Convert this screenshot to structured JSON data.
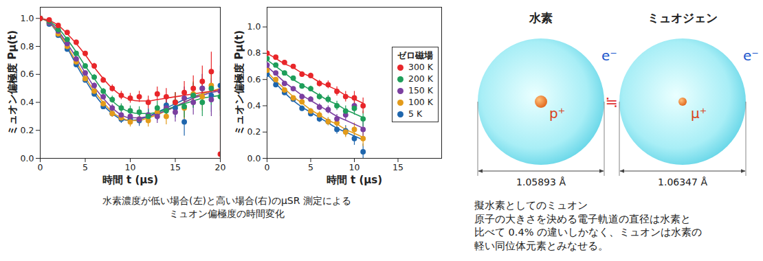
{
  "chart_data": [
    {
      "type": "scatter",
      "x_label": "時間 t (μs)",
      "y_label": "ミュオン偏極度 Pμ(t)",
      "xlim": [
        0,
        20
      ],
      "xticks": [
        0,
        5,
        10,
        15,
        20
      ],
      "ylim": [
        0,
        1.08
      ],
      "yticks": [
        {
          "value": 0,
          "label": "0.0"
        },
        0.2,
        0.4,
        0.6,
        0.8,
        {
          "value": 1,
          "label": "1.0"
        }
      ],
      "grid": false,
      "x": [
        0,
        1,
        2,
        3,
        4,
        5,
        6,
        7,
        8,
        9,
        10,
        11,
        12,
        13,
        14,
        15,
        16,
        17,
        18,
        19,
        20
      ],
      "series": [
        {
          "name": "300 K",
          "color": "#e8262a",
          "marker": "circle",
          "line_style": "solid",
          "values": [
            1.0,
            0.99,
            0.95,
            0.9,
            0.83,
            0.75,
            0.66,
            0.56,
            0.5,
            0.45,
            0.43,
            0.44,
            0.4,
            0.46,
            0.44,
            0.4,
            0.47,
            0.5,
            0.55,
            0.62,
            0.03
          ],
          "errors": [
            0.01,
            0.01,
            0.01,
            0.01,
            0.015,
            0.015,
            0.02,
            0.02,
            0.025,
            0.03,
            0.035,
            0.04,
            0.045,
            0.05,
            0.06,
            0.07,
            0.08,
            0.09,
            0.11,
            0.14,
            0.35
          ],
          "fit": [
            1.0,
            0.985,
            0.95,
            0.89,
            0.82,
            0.74,
            0.65,
            0.57,
            0.5,
            0.45,
            0.42,
            0.41,
            0.41,
            0.42,
            0.43,
            0.44,
            0.45,
            0.46,
            0.47,
            0.48,
            0.49
          ]
        },
        {
          "name": "200 K",
          "color": "#1f9e5a",
          "marker": "circle",
          "line_style": "solid",
          "values": [
            1.0,
            0.98,
            0.92,
            0.85,
            0.75,
            0.66,
            0.58,
            0.48,
            0.42,
            0.36,
            0.34,
            0.33,
            0.3,
            0.36,
            0.34,
            0.4,
            0.37,
            0.45,
            0.4,
            0.5,
            0.44
          ],
          "errors": [
            0.01,
            0.01,
            0.01,
            0.01,
            0.015,
            0.015,
            0.02,
            0.02,
            0.025,
            0.03,
            0.035,
            0.04,
            0.045,
            0.05,
            0.06,
            0.07,
            0.08,
            0.09,
            0.1,
            0.12,
            0.14
          ],
          "fit": [
            1.0,
            0.98,
            0.93,
            0.85,
            0.76,
            0.66,
            0.57,
            0.48,
            0.41,
            0.36,
            0.33,
            0.32,
            0.32,
            0.33,
            0.35,
            0.37,
            0.39,
            0.41,
            0.43,
            0.44,
            0.45
          ]
        },
        {
          "name": "150 K",
          "color": "#7b3fa0",
          "marker": "circle",
          "line_style": "solid",
          "values": [
            1.0,
            0.97,
            0.91,
            0.82,
            0.71,
            0.61,
            0.52,
            0.44,
            0.36,
            0.31,
            0.3,
            0.28,
            0.31,
            0.3,
            0.36,
            0.33,
            0.43,
            0.4,
            0.5,
            0.42,
            0.48
          ],
          "errors": [
            0.01,
            0.01,
            0.01,
            0.01,
            0.015,
            0.015,
            0.02,
            0.02,
            0.025,
            0.03,
            0.035,
            0.04,
            0.045,
            0.05,
            0.06,
            0.07,
            0.08,
            0.09,
            0.1,
            0.12,
            0.14
          ],
          "fit": [
            1.0,
            0.975,
            0.91,
            0.82,
            0.72,
            0.61,
            0.51,
            0.43,
            0.36,
            0.31,
            0.29,
            0.29,
            0.3,
            0.32,
            0.34,
            0.37,
            0.4,
            0.43,
            0.45,
            0.47,
            0.48
          ]
        },
        {
          "name": "100 K",
          "color": "#e39b1a",
          "marker": "circle",
          "line_style": "solid",
          "values": [
            1.0,
            0.97,
            0.89,
            0.8,
            0.69,
            0.57,
            0.48,
            0.39,
            0.32,
            0.29,
            0.26,
            0.28,
            0.27,
            0.33,
            0.3,
            0.4,
            0.36,
            0.46,
            0.44,
            0.52,
            0.48
          ],
          "errors": [
            0.01,
            0.01,
            0.01,
            0.01,
            0.015,
            0.015,
            0.02,
            0.02,
            0.025,
            0.03,
            0.035,
            0.04,
            0.045,
            0.05,
            0.06,
            0.07,
            0.08,
            0.09,
            0.1,
            0.12,
            0.14
          ],
          "fit": [
            1.0,
            0.97,
            0.9,
            0.8,
            0.69,
            0.58,
            0.48,
            0.4,
            0.33,
            0.29,
            0.27,
            0.27,
            0.29,
            0.31,
            0.34,
            0.37,
            0.4,
            0.43,
            0.46,
            0.48,
            0.5
          ]
        },
        {
          "name": "5 K",
          "color": "#1f66ad",
          "marker": "circle",
          "line_style": "solid",
          "values": [
            1.0,
            0.96,
            0.88,
            0.78,
            0.67,
            0.56,
            0.46,
            0.37,
            0.32,
            0.28,
            0.28,
            0.27,
            0.31,
            0.32,
            0.38,
            0.36,
            0.26,
            0.45,
            0.5,
            0.45,
            0.52
          ],
          "errors": [
            0.01,
            0.01,
            0.01,
            0.01,
            0.015,
            0.015,
            0.02,
            0.02,
            0.025,
            0.03,
            0.035,
            0.04,
            0.045,
            0.05,
            0.06,
            0.07,
            0.1,
            0.09,
            0.1,
            0.12,
            0.14
          ],
          "fit": [
            1.0,
            0.97,
            0.89,
            0.79,
            0.67,
            0.56,
            0.46,
            0.38,
            0.32,
            0.28,
            0.27,
            0.28,
            0.3,
            0.33,
            0.36,
            0.39,
            0.42,
            0.44,
            0.46,
            0.48,
            0.49
          ]
        }
      ]
    },
    {
      "type": "scatter",
      "x_label": "時間 t (μs)",
      "y_label": "ミュオン偏極度 Pμ(t)",
      "xlim": [
        0,
        20
      ],
      "xticks": [
        0,
        5,
        10,
        15
      ],
      "ylim": [
        0,
        1.15
      ],
      "yticks": [
        {
          "value": 0,
          "label": "0.0"
        },
        0.2,
        0.4,
        0.6,
        0.8,
        {
          "value": 1,
          "label": "1.0"
        }
      ],
      "grid": false,
      "legend": "upper right",
      "legend_title": "ゼロ磁場",
      "x": [
        0,
        1,
        2,
        3,
        4,
        5,
        6,
        7,
        8,
        9,
        10,
        11
      ],
      "series": [
        {
          "name": "300 K",
          "color": "#e8262a",
          "marker": "circle",
          "line_style": "solid",
          "values": [
            0.8,
            0.77,
            0.73,
            0.7,
            0.64,
            0.63,
            0.57,
            0.56,
            0.51,
            0.47,
            0.46,
            0.4
          ],
          "errors": [
            0.01,
            0.01,
            0.015,
            0.015,
            0.02,
            0.02,
            0.025,
            0.03,
            0.035,
            0.04,
            0.05,
            0.06
          ],
          "fit": [
            0.8,
            0.76,
            0.72,
            0.69,
            0.65,
            0.62,
            0.58,
            0.55,
            0.52,
            0.48,
            0.45,
            0.42
          ]
        },
        {
          "name": "200 K",
          "color": "#1f9e5a",
          "marker": "circle",
          "line_style": "solid",
          "values": [
            0.76,
            0.71,
            0.65,
            0.61,
            0.55,
            0.53,
            0.47,
            0.45,
            0.4,
            0.36,
            0.38,
            0.3
          ],
          "errors": [
            0.01,
            0.01,
            0.015,
            0.015,
            0.02,
            0.02,
            0.025,
            0.03,
            0.035,
            0.04,
            0.05,
            0.06
          ],
          "fit": [
            0.75,
            0.7,
            0.65,
            0.6,
            0.56,
            0.52,
            0.48,
            0.44,
            0.41,
            0.37,
            0.34,
            0.31
          ]
        },
        {
          "name": "150 K",
          "color": "#7b3fa0",
          "marker": "circle",
          "line_style": "solid",
          "values": [
            0.71,
            0.65,
            0.57,
            0.53,
            0.47,
            0.45,
            0.39,
            0.37,
            0.3,
            0.33,
            0.4,
            0.22
          ],
          "errors": [
            0.01,
            0.01,
            0.015,
            0.015,
            0.02,
            0.02,
            0.025,
            0.03,
            0.035,
            0.04,
            0.05,
            0.06
          ],
          "fit": [
            0.7,
            0.64,
            0.58,
            0.53,
            0.48,
            0.44,
            0.4,
            0.36,
            0.32,
            0.29,
            0.26,
            0.23
          ]
        },
        {
          "name": "100 K",
          "color": "#e39b1a",
          "marker": "circle",
          "line_style": "solid",
          "values": [
            0.67,
            0.6,
            0.52,
            0.46,
            0.43,
            0.36,
            0.33,
            0.28,
            0.27,
            0.2,
            0.22,
            0.15
          ],
          "errors": [
            0.01,
            0.01,
            0.015,
            0.015,
            0.02,
            0.02,
            0.025,
            0.03,
            0.035,
            0.04,
            0.05,
            0.06
          ],
          "fit": [
            0.66,
            0.59,
            0.53,
            0.47,
            0.42,
            0.37,
            0.33,
            0.29,
            0.26,
            0.22,
            0.19,
            0.16
          ]
        },
        {
          "name": "5 K",
          "color": "#1f66ad",
          "marker": "circle",
          "line_style": "solid",
          "values": [
            0.64,
            0.56,
            0.5,
            0.45,
            0.38,
            0.34,
            0.3,
            0.28,
            0.22,
            0.21,
            0.15,
            0.05
          ],
          "errors": [
            0.01,
            0.01,
            0.015,
            0.015,
            0.02,
            0.02,
            0.025,
            0.03,
            0.035,
            0.04,
            0.05,
            0.06
          ],
          "fit": [
            0.64,
            0.57,
            0.5,
            0.44,
            0.39,
            0.35,
            0.31,
            0.27,
            0.23,
            0.2,
            0.17,
            0.14
          ]
        }
      ]
    }
  ],
  "caption": [
    "水素濃度が低い場合(左)と高い場合(右)のμSR 測定による",
    "ミュオン偏極度の時間変化"
  ],
  "diagram": {
    "atoms": [
      {
        "title": "水素",
        "nucleus": "p⁺",
        "electron": "e⁻",
        "diameter": "1.05893 Å"
      },
      {
        "title": "ミュオジェン",
        "nucleus": "μ⁺",
        "electron": "e⁻",
        "diameter": "1.06347 Å"
      }
    ],
    "relation": "≒",
    "caption": [
      "擬水素としてのミュオン",
      "原子の大きさを決める電子軌道の直径は水素と",
      "比べて 0.4% の違いしかなく、ミュオンは水素の",
      "軽い同位体元素とみなせる。"
    ]
  }
}
